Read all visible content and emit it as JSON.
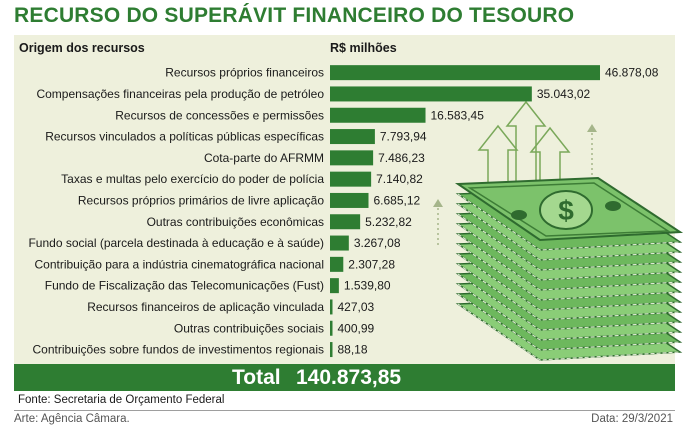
{
  "title": "RECURSO DO SUPERÁVIT FINANCEIRO DO TESOURO",
  "headers": {
    "origin": "Origem dos recursos",
    "unit": "R$ milhões"
  },
  "total": {
    "label": "Total",
    "value": "140.873,85"
  },
  "source": "Fonte: Secretaria de Orçamento Federal",
  "credit": "Arte: Agência Câmara.",
  "date": "Data: 29/3/2021",
  "colors": {
    "bar": "#2e7d32",
    "panel": "#eef0dc",
    "title": "#2e7d32"
  },
  "chart_data": {
    "type": "bar",
    "orientation": "horizontal",
    "unit": "R$ milhões",
    "categories": [
      "Recursos próprios financeiros",
      "Compensações financeiras pela produção de petróleo",
      "Recursos de concessões e permissões",
      "Recursos vinculados a políticas públicas específicas",
      "Cota-parte do AFRMM",
      "Taxas e multas pelo exercício do poder de polícia",
      "Recursos próprios primários de livre aplicação",
      "Outras contribuições econômicas",
      "Fundo social (parcela destinada à educação e à saúde)",
      "Contribuição para a indústria cinematográfica nacional",
      "Fundo de Fiscalização das Telecomunicações (Fust)",
      "Recursos financeiros de aplicação vinculada",
      "Outras contribuições sociais",
      "Contribuições sobre fundos de investimentos regionais"
    ],
    "values": [
      46878.08,
      35043.02,
      16583.45,
      7793.94,
      7486.23,
      7140.82,
      6685.12,
      5232.82,
      3267.08,
      2307.28,
      1539.8,
      427.03,
      400.99,
      88.18
    ],
    "labels": [
      "46.878,08",
      "35.043,02",
      "16.583,45",
      "7.793,94",
      "7.486,23",
      "7.140,82",
      "6.685,12",
      "5.232,82",
      "3.267,08",
      "2.307,28",
      "1.539,80",
      "427,03",
      "400,99",
      "88,18"
    ]
  }
}
